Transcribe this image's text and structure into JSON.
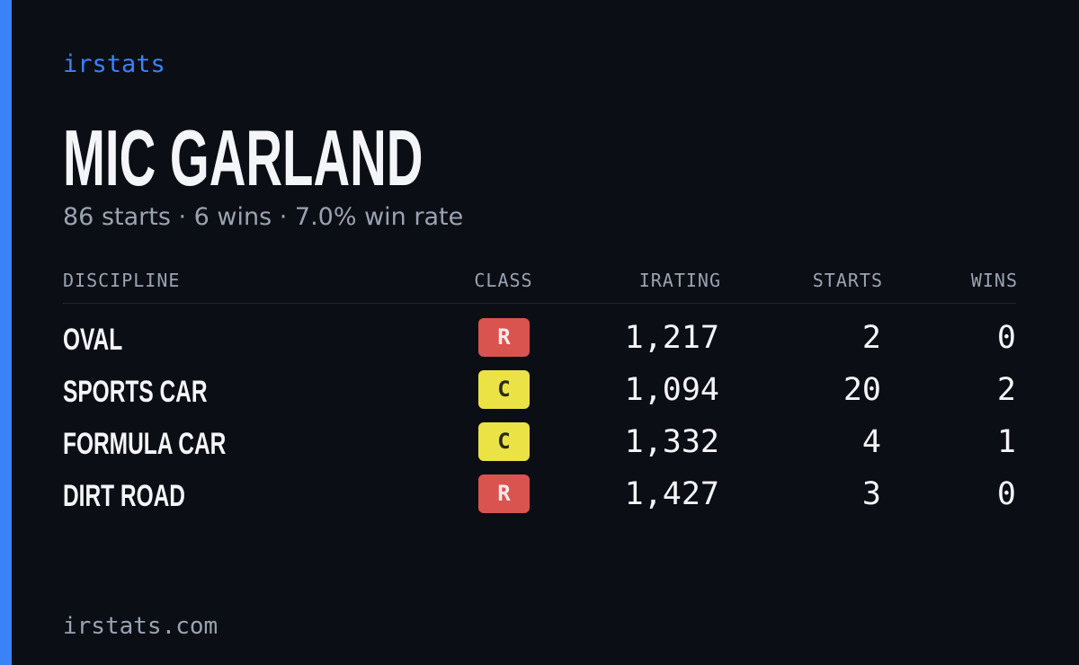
{
  "header": {
    "brand": "irstats",
    "name": "MIC GARLAND",
    "summary": "86 starts · 6 wins · 7.0% win rate"
  },
  "table": {
    "columns": [
      "DISCIPLINE",
      "CLASS",
      "IRATING",
      "STARTS",
      "WINS"
    ],
    "rows": [
      [
        "OVAL",
        "R",
        "1,217",
        "2",
        "0"
      ],
      [
        "SPORTS CAR",
        "C",
        "1,094",
        "20",
        "2"
      ],
      [
        "FORMULA CAR",
        "C",
        "1,332",
        "4",
        "1"
      ],
      [
        "DIRT ROAD",
        "R",
        "1,427",
        "3",
        "0"
      ]
    ]
  },
  "footer": {
    "site": "irstats.com"
  }
}
